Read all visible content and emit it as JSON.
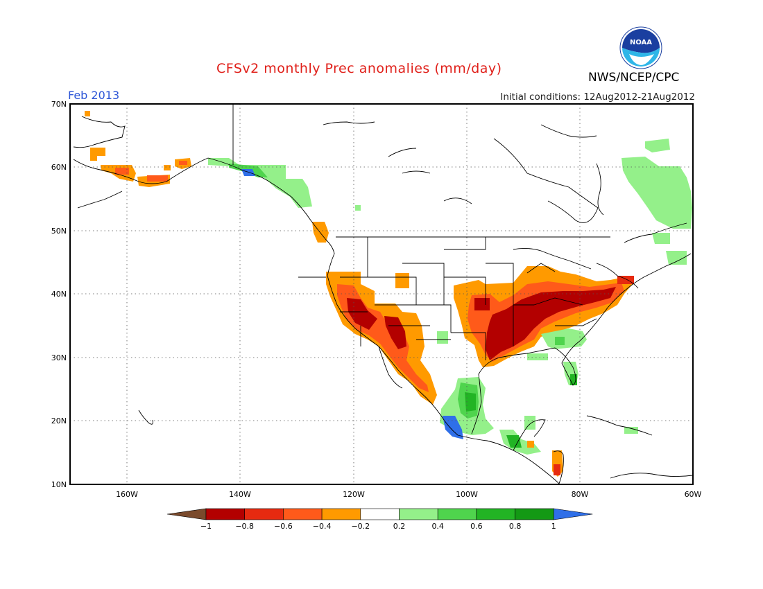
{
  "header": {
    "title": "CFSv2 monthly Prec anomalies (mm/day)",
    "month": "Feb 2013",
    "initial_conditions": "Initial conditions: 12Aug2012-21Aug2012",
    "agency": "NWS/NCEP/CPC",
    "logo_icon": "noaa-logo-icon",
    "logo_text": "NOAA"
  },
  "map": {
    "lat_labels": [
      "70N",
      "60N",
      "50N",
      "40N",
      "30N",
      "20N",
      "10N"
    ],
    "lon_labels": [
      "160W",
      "140W",
      "120W",
      "100W",
      "80W",
      "60W"
    ],
    "lat_range": [
      10,
      70
    ],
    "lon_range": [
      -170,
      -60
    ],
    "grid": true
  },
  "colorbar": {
    "labels": [
      "-1",
      "-0.8",
      "-0.6",
      "-0.4",
      "-0.2",
      "0.2",
      "0.4",
      "0.6",
      "0.8",
      "1"
    ],
    "colors": [
      "#7a4a2c",
      "#b30000",
      "#e62a10",
      "#ff5a1a",
      "#ff9a00",
      "#ffffff",
      "#94f08a",
      "#4fd44d",
      "#22b424",
      "#139914",
      "#2f6fe8"
    ]
  }
}
